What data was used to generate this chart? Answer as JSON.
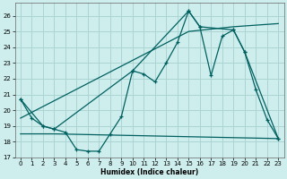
{
  "xlabel": "Humidex (Indice chaleur)",
  "bg_color": "#ceeeed",
  "grid_color": "#aad4d3",
  "line_color": "#006060",
  "xlim": [
    -0.5,
    23.5
  ],
  "ylim": [
    17,
    26.8
  ],
  "yticks": [
    17,
    18,
    19,
    20,
    21,
    22,
    23,
    24,
    25,
    26
  ],
  "xticks": [
    0,
    1,
    2,
    3,
    4,
    5,
    6,
    7,
    8,
    9,
    10,
    11,
    12,
    13,
    14,
    15,
    16,
    17,
    18,
    19,
    20,
    21,
    22,
    23
  ],
  "series1_x": [
    0,
    1,
    2,
    3,
    4,
    5,
    6,
    7,
    8,
    9,
    10,
    11,
    12,
    13,
    14,
    15,
    16,
    17,
    18,
    19,
    20,
    21,
    22,
    23
  ],
  "series1_y": [
    20.7,
    19.5,
    19.0,
    18.8,
    18.6,
    17.5,
    17.4,
    17.4,
    18.5,
    19.6,
    22.5,
    22.3,
    21.8,
    23.0,
    24.3,
    26.3,
    25.3,
    22.2,
    24.7,
    25.1,
    23.7,
    21.3,
    19.4,
    18.2
  ],
  "series2_x": [
    0,
    2,
    3,
    10,
    15,
    16,
    19,
    20,
    23
  ],
  "series2_y": [
    20.7,
    19.0,
    18.8,
    22.5,
    26.3,
    25.3,
    25.1,
    23.7,
    18.2
  ],
  "series3_x": [
    0,
    3,
    23
  ],
  "series3_y": [
    18.5,
    18.5,
    18.2
  ],
  "series4_x": [
    0,
    15,
    19,
    23
  ],
  "series4_y": [
    19.5,
    25.0,
    25.3,
    25.5
  ]
}
